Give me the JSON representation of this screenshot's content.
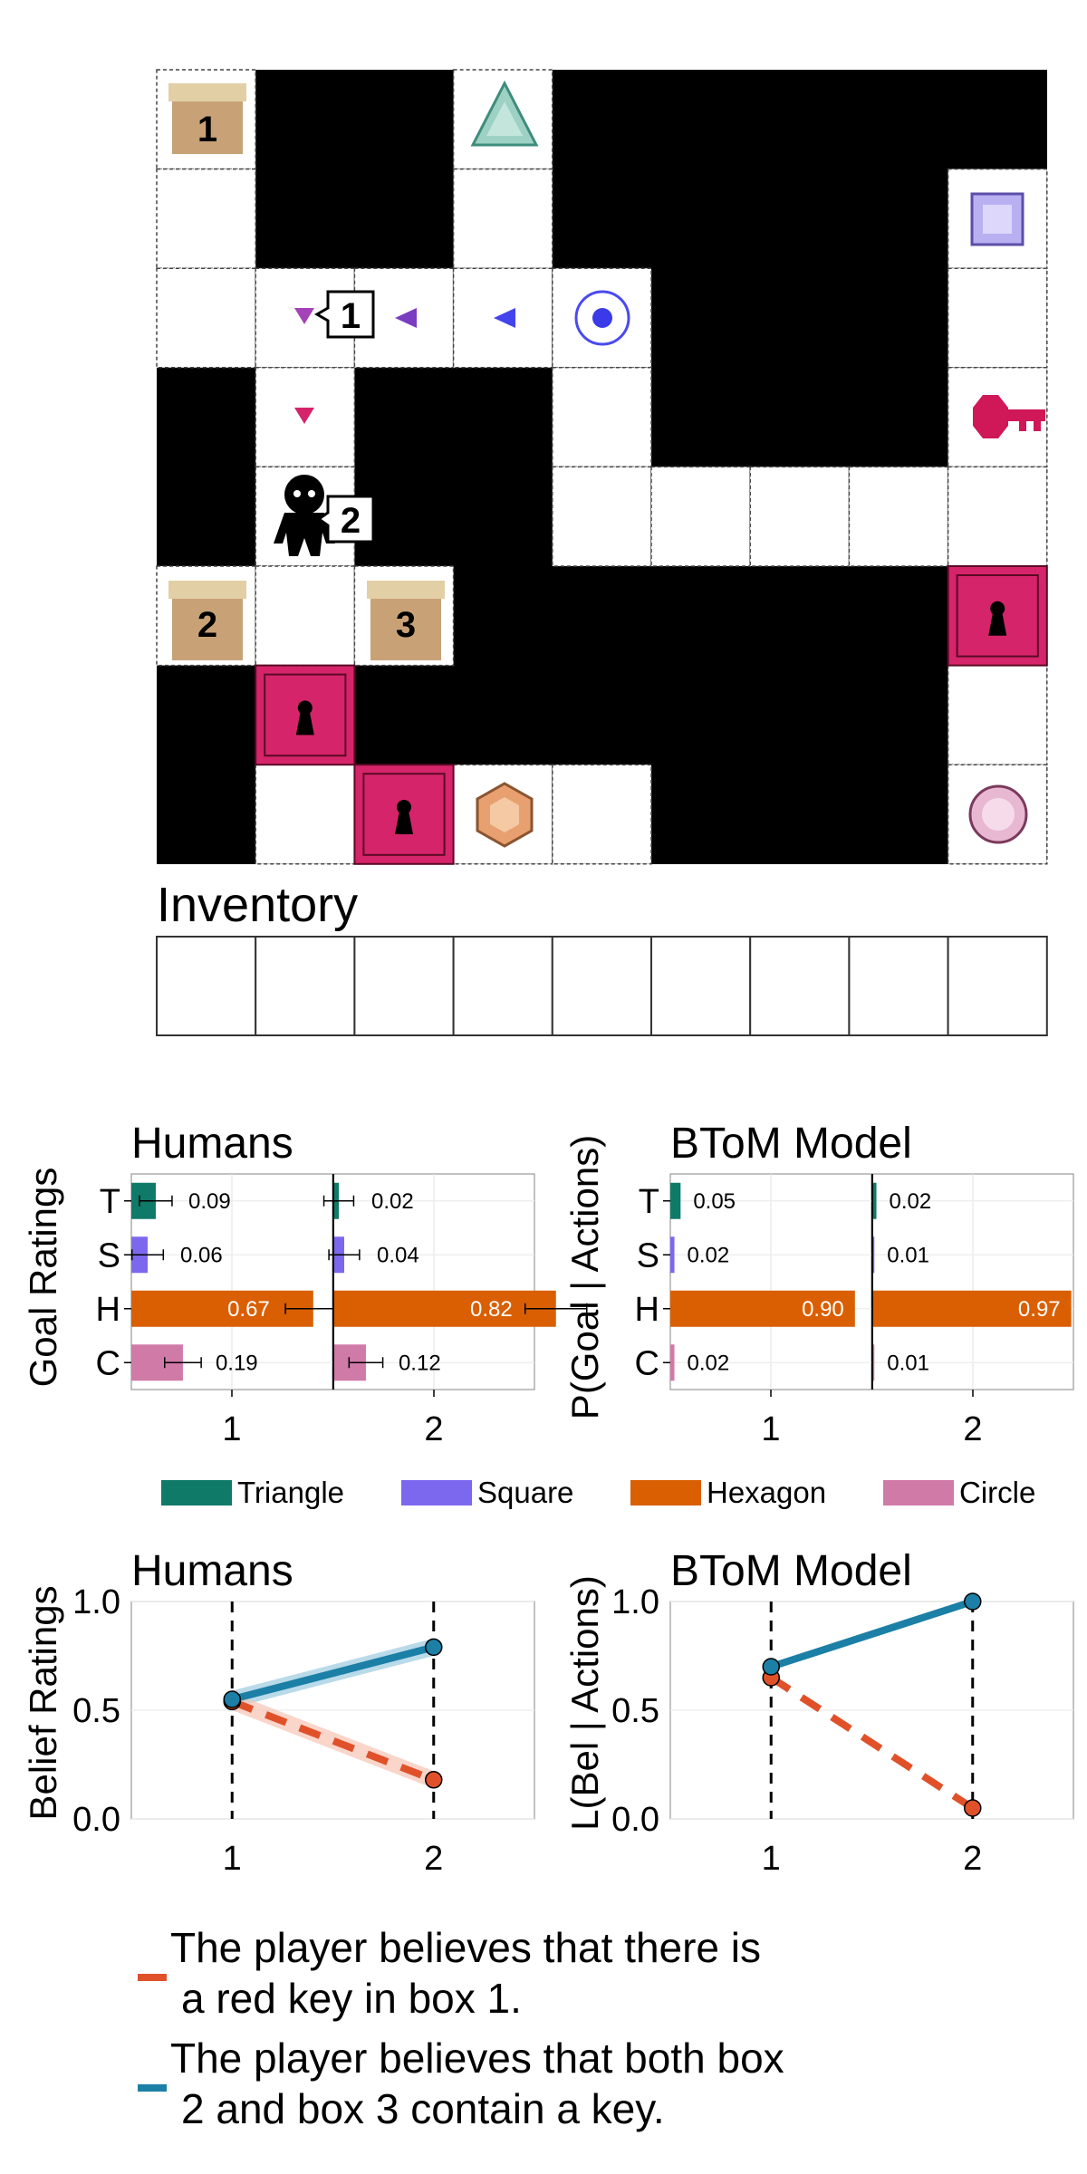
{
  "gridworld": {
    "inventory_label": "Inventory",
    "inventory_slots": 9,
    "boxes": [
      "1",
      "2",
      "3"
    ],
    "speech_labels": [
      "1",
      "2"
    ]
  },
  "colors": {
    "triangle": "#0f7a68",
    "square": "#7b68ee",
    "hexagon": "#d95f02",
    "circle": "#d07aa8",
    "belief_red": "#e0512a",
    "belief_blue": "#1b7fa6",
    "door": "#d6246a",
    "box": "#c8a276"
  },
  "chart_data": [
    {
      "type": "bar",
      "title": "Humans",
      "ylabel": "Goal Ratings",
      "categories": [
        "T",
        "S",
        "H",
        "C"
      ],
      "panels": [
        "1",
        "2"
      ],
      "series": [
        {
          "name": "Triangle",
          "values": [
            0.09,
            0.02
          ]
        },
        {
          "name": "Square",
          "values": [
            0.06,
            0.04
          ]
        },
        {
          "name": "Hexagon",
          "values": [
            0.67,
            0.82
          ]
        },
        {
          "name": "Circle",
          "values": [
            0.19,
            0.12
          ]
        }
      ],
      "labels": [
        [
          "0.09",
          "0.06",
          "0.67",
          "0.19"
        ],
        [
          "0.02",
          "0.04",
          "0.82",
          "0.12"
        ]
      ],
      "error_bars": true,
      "xlim": [
        0,
        1
      ]
    },
    {
      "type": "bar",
      "title": "BToM Model",
      "ylabel": "P(Goal | Actions)",
      "categories": [
        "T",
        "S",
        "H",
        "C"
      ],
      "panels": [
        "1",
        "2"
      ],
      "series": [
        {
          "name": "Triangle",
          "values": [
            0.05,
            0.02
          ]
        },
        {
          "name": "Square",
          "values": [
            0.02,
            0.01
          ]
        },
        {
          "name": "Hexagon",
          "values": [
            0.9,
            0.97
          ]
        },
        {
          "name": "Circle",
          "values": [
            0.02,
            0.01
          ]
        }
      ],
      "labels": [
        [
          "0.05",
          "0.02",
          "0.90",
          "0.02"
        ],
        [
          "0.02",
          "0.01",
          "0.97",
          "0.01"
        ]
      ],
      "error_bars": false,
      "xlim": [
        0,
        1
      ]
    },
    {
      "type": "line",
      "title": "Humans",
      "ylabel": "Belief Ratings",
      "x": [
        1,
        2
      ],
      "xticks": [
        "1",
        "2"
      ],
      "yticks": [
        "0.0",
        "0.5",
        "1.0"
      ],
      "ylim": [
        0,
        1
      ],
      "series": [
        {
          "values": [
            0.55,
            0.79
          ],
          "style": "solid",
          "band": 0.04
        },
        {
          "values": [
            0.54,
            0.18
          ],
          "style": "dashed",
          "band": 0.04
        }
      ]
    },
    {
      "type": "line",
      "title": "BToM Model",
      "ylabel": "L(Bel | Actions)",
      "x": [
        1,
        2
      ],
      "xticks": [
        "1",
        "2"
      ],
      "yticks": [
        "0.0",
        "0.5",
        "1.0"
      ],
      "ylim": [
        0,
        1
      ],
      "series": [
        {
          "values": [
            0.7,
            1.0
          ],
          "style": "solid"
        },
        {
          "values": [
            0.65,
            0.05
          ],
          "style": "dashed"
        }
      ]
    }
  ],
  "legend": [
    "Triangle",
    "Square",
    "Hexagon",
    "Circle"
  ],
  "caption": {
    "red_line1": "The player believes that there is",
    "red_line2": "a red key in box 1.",
    "blue_line1": "The player believes that both box",
    "blue_line2": "2 and box 3 contain a key."
  }
}
